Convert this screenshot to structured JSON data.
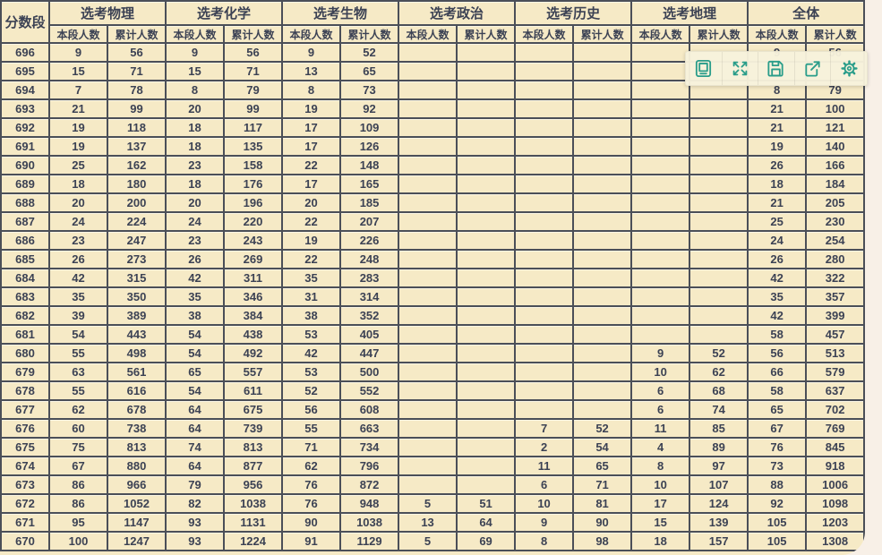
{
  "table": {
    "score_header": "分数段",
    "groups": [
      "选考物理",
      "选考化学",
      "选考生物",
      "选考政治",
      "选考历史",
      "选考地理",
      "全体"
    ],
    "subheaders": [
      "本段人数",
      "累计人数"
    ],
    "rows": [
      {
        "score": "696",
        "values": [
          "9",
          "56",
          "9",
          "56",
          "9",
          "52",
          "",
          "",
          "",
          "",
          "",
          "",
          "9",
          "56"
        ]
      },
      {
        "score": "695",
        "values": [
          "15",
          "71",
          "15",
          "71",
          "13",
          "65",
          "",
          "",
          "",
          "",
          "",
          "",
          "",
          ""
        ]
      },
      {
        "score": "694",
        "values": [
          "7",
          "78",
          "8",
          "79",
          "8",
          "73",
          "",
          "",
          "",
          "",
          "",
          "",
          "8",
          "79"
        ]
      },
      {
        "score": "693",
        "values": [
          "21",
          "99",
          "20",
          "99",
          "19",
          "92",
          "",
          "",
          "",
          "",
          "",
          "",
          "21",
          "100"
        ]
      },
      {
        "score": "692",
        "values": [
          "19",
          "118",
          "18",
          "117",
          "17",
          "109",
          "",
          "",
          "",
          "",
          "",
          "",
          "21",
          "121"
        ]
      },
      {
        "score": "691",
        "values": [
          "19",
          "137",
          "18",
          "135",
          "17",
          "126",
          "",
          "",
          "",
          "",
          "",
          "",
          "19",
          "140"
        ]
      },
      {
        "score": "690",
        "values": [
          "25",
          "162",
          "23",
          "158",
          "22",
          "148",
          "",
          "",
          "",
          "",
          "",
          "",
          "26",
          "166"
        ]
      },
      {
        "score": "689",
        "values": [
          "18",
          "180",
          "18",
          "176",
          "17",
          "165",
          "",
          "",
          "",
          "",
          "",
          "",
          "18",
          "184"
        ]
      },
      {
        "score": "688",
        "values": [
          "20",
          "200",
          "20",
          "196",
          "20",
          "185",
          "",
          "",
          "",
          "",
          "",
          "",
          "21",
          "205"
        ]
      },
      {
        "score": "687",
        "values": [
          "24",
          "224",
          "24",
          "220",
          "22",
          "207",
          "",
          "",
          "",
          "",
          "",
          "",
          "25",
          "230"
        ]
      },
      {
        "score": "686",
        "values": [
          "23",
          "247",
          "23",
          "243",
          "19",
          "226",
          "",
          "",
          "",
          "",
          "",
          "",
          "24",
          "254"
        ]
      },
      {
        "score": "685",
        "values": [
          "26",
          "273",
          "26",
          "269",
          "22",
          "248",
          "",
          "",
          "",
          "",
          "",
          "",
          "26",
          "280"
        ]
      },
      {
        "score": "684",
        "values": [
          "42",
          "315",
          "42",
          "311",
          "35",
          "283",
          "",
          "",
          "",
          "",
          "",
          "",
          "42",
          "322"
        ]
      },
      {
        "score": "683",
        "values": [
          "35",
          "350",
          "35",
          "346",
          "31",
          "314",
          "",
          "",
          "",
          "",
          "",
          "",
          "35",
          "357"
        ]
      },
      {
        "score": "682",
        "values": [
          "39",
          "389",
          "38",
          "384",
          "38",
          "352",
          "",
          "",
          "",
          "",
          "",
          "",
          "42",
          "399"
        ]
      },
      {
        "score": "681",
        "values": [
          "54",
          "443",
          "54",
          "438",
          "53",
          "405",
          "",
          "",
          "",
          "",
          "",
          "",
          "58",
          "457"
        ]
      },
      {
        "score": "680",
        "values": [
          "55",
          "498",
          "54",
          "492",
          "42",
          "447",
          "",
          "",
          "",
          "",
          "9",
          "52",
          "56",
          "513"
        ]
      },
      {
        "score": "679",
        "values": [
          "63",
          "561",
          "65",
          "557",
          "53",
          "500",
          "",
          "",
          "",
          "",
          "10",
          "62",
          "66",
          "579"
        ]
      },
      {
        "score": "678",
        "values": [
          "55",
          "616",
          "54",
          "611",
          "52",
          "552",
          "",
          "",
          "",
          "",
          "6",
          "68",
          "58",
          "637"
        ]
      },
      {
        "score": "677",
        "values": [
          "62",
          "678",
          "64",
          "675",
          "56",
          "608",
          "",
          "",
          "",
          "",
          "6",
          "74",
          "65",
          "702"
        ]
      },
      {
        "score": "676",
        "values": [
          "60",
          "738",
          "64",
          "739",
          "55",
          "663",
          "",
          "",
          "7",
          "52",
          "11",
          "85",
          "67",
          "769"
        ]
      },
      {
        "score": "675",
        "values": [
          "75",
          "813",
          "74",
          "813",
          "71",
          "734",
          "",
          "",
          "2",
          "54",
          "4",
          "89",
          "76",
          "845"
        ]
      },
      {
        "score": "674",
        "values": [
          "67",
          "880",
          "64",
          "877",
          "62",
          "796",
          "",
          "",
          "11",
          "65",
          "8",
          "97",
          "73",
          "918"
        ]
      },
      {
        "score": "673",
        "values": [
          "86",
          "966",
          "79",
          "956",
          "76",
          "872",
          "",
          "",
          "6",
          "71",
          "10",
          "107",
          "88",
          "1006"
        ]
      },
      {
        "score": "672",
        "values": [
          "86",
          "1052",
          "82",
          "1038",
          "76",
          "948",
          "5",
          "51",
          "10",
          "81",
          "17",
          "124",
          "92",
          "1098"
        ]
      },
      {
        "score": "671",
        "values": [
          "95",
          "1147",
          "93",
          "1131",
          "90",
          "1038",
          "13",
          "64",
          "9",
          "90",
          "15",
          "139",
          "105",
          "1203"
        ]
      },
      {
        "score": "670",
        "values": [
          "100",
          "1247",
          "93",
          "1224",
          "91",
          "1129",
          "5",
          "69",
          "8",
          "98",
          "18",
          "157",
          "105",
          "1308"
        ]
      }
    ]
  },
  "toolbar": {
    "accent_color": "#2a9d8a",
    "buttons": [
      {
        "icon": "device-icon"
      },
      {
        "icon": "expand-icon"
      },
      {
        "icon": "save-icon"
      },
      {
        "icon": "share-icon"
      },
      {
        "icon": "settings-icon"
      }
    ]
  },
  "colors": {
    "table_bg": "#f6eac6",
    "border": "#4b4f58",
    "text": "#3c4254",
    "page_bg": "#f8f0e7",
    "toolbar_bg": "#f7f1dc"
  }
}
